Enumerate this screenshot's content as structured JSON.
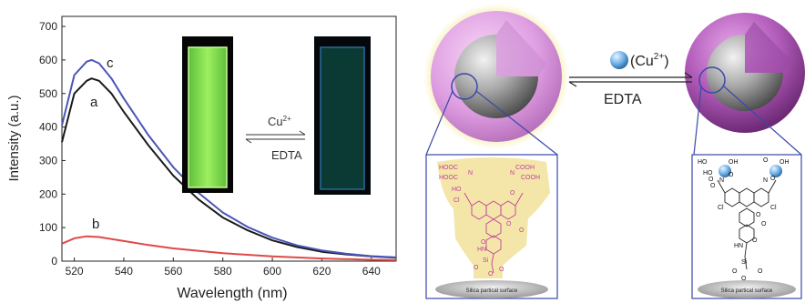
{
  "chart_data": {
    "type": "line",
    "xlabel": "Wavelength (nm)",
    "ylabel": "Intensity (a.u.)",
    "xlim": [
      515,
      650
    ],
    "ylim": [
      0,
      730
    ],
    "xticks": [
      520,
      540,
      560,
      580,
      600,
      620,
      640
    ],
    "yticks": [
      0,
      100,
      200,
      300,
      400,
      500,
      600,
      700
    ],
    "grid": false,
    "series": [
      {
        "name": "a",
        "color": "#1a1a1a",
        "x": [
          515,
          520,
          525,
          527,
          530,
          535,
          540,
          550,
          560,
          570,
          580,
          590,
          600,
          610,
          620,
          630,
          640,
          650
        ],
        "y": [
          355,
          500,
          538,
          545,
          538,
          500,
          445,
          345,
          255,
          185,
          130,
          92,
          62,
          42,
          28,
          20,
          14,
          10
        ]
      },
      {
        "name": "c",
        "color": "#4a55b8",
        "x": [
          515,
          520,
          525,
          527,
          530,
          535,
          540,
          550,
          560,
          570,
          580,
          590,
          600,
          610,
          620,
          630,
          640,
          650
        ],
        "y": [
          405,
          555,
          595,
          600,
          590,
          545,
          485,
          375,
          280,
          205,
          145,
          102,
          70,
          47,
          32,
          22,
          15,
          11
        ]
      },
      {
        "name": "b",
        "color": "#e04848",
        "x": [
          515,
          520,
          525,
          530,
          540,
          550,
          560,
          580,
          600,
          620,
          640,
          650
        ],
        "y": [
          52,
          68,
          74,
          72,
          60,
          48,
          38,
          24,
          14,
          8,
          4,
          3
        ]
      }
    ]
  },
  "inset": {
    "reagent": "Cu",
    "reagent_sup": "2+",
    "reverse": "EDTA",
    "cuvette_on_color": "#84e04a",
    "cuvette_off_color": "#0c3a32"
  },
  "scheme": {
    "reagent_label": "(Cu",
    "reagent_sup": "2+",
    "reagent_close": ")",
    "reverse_label": "EDTA",
    "left_surface_label": "Silica partical surface",
    "right_surface_label": "Silica partical surface",
    "left_molecule_labels": [
      "HOOC",
      "HOOC",
      "COOH",
      "COOH",
      "N",
      "N",
      "HO",
      "Cl",
      "O",
      "O",
      "O",
      "HN",
      "O",
      "Si",
      "O",
      "O",
      "O"
    ],
    "right_molecule_labels": [
      "HO",
      "HO",
      "O",
      "O",
      "OH",
      "O",
      "OH",
      "O",
      "N",
      "N",
      "Cl",
      "Cl",
      "O",
      "O",
      "HN",
      "O",
      "Si",
      "O",
      "O",
      "O",
      "O"
    ],
    "colors": {
      "shell_left": "#d990e0",
      "shell_right": "#a84eb0",
      "halo": "#f0e27a",
      "core": "#9a9a9a",
      "frame": "#4a55a8",
      "ion": "#7ab8e8",
      "left_mol": "#c0409a"
    }
  }
}
